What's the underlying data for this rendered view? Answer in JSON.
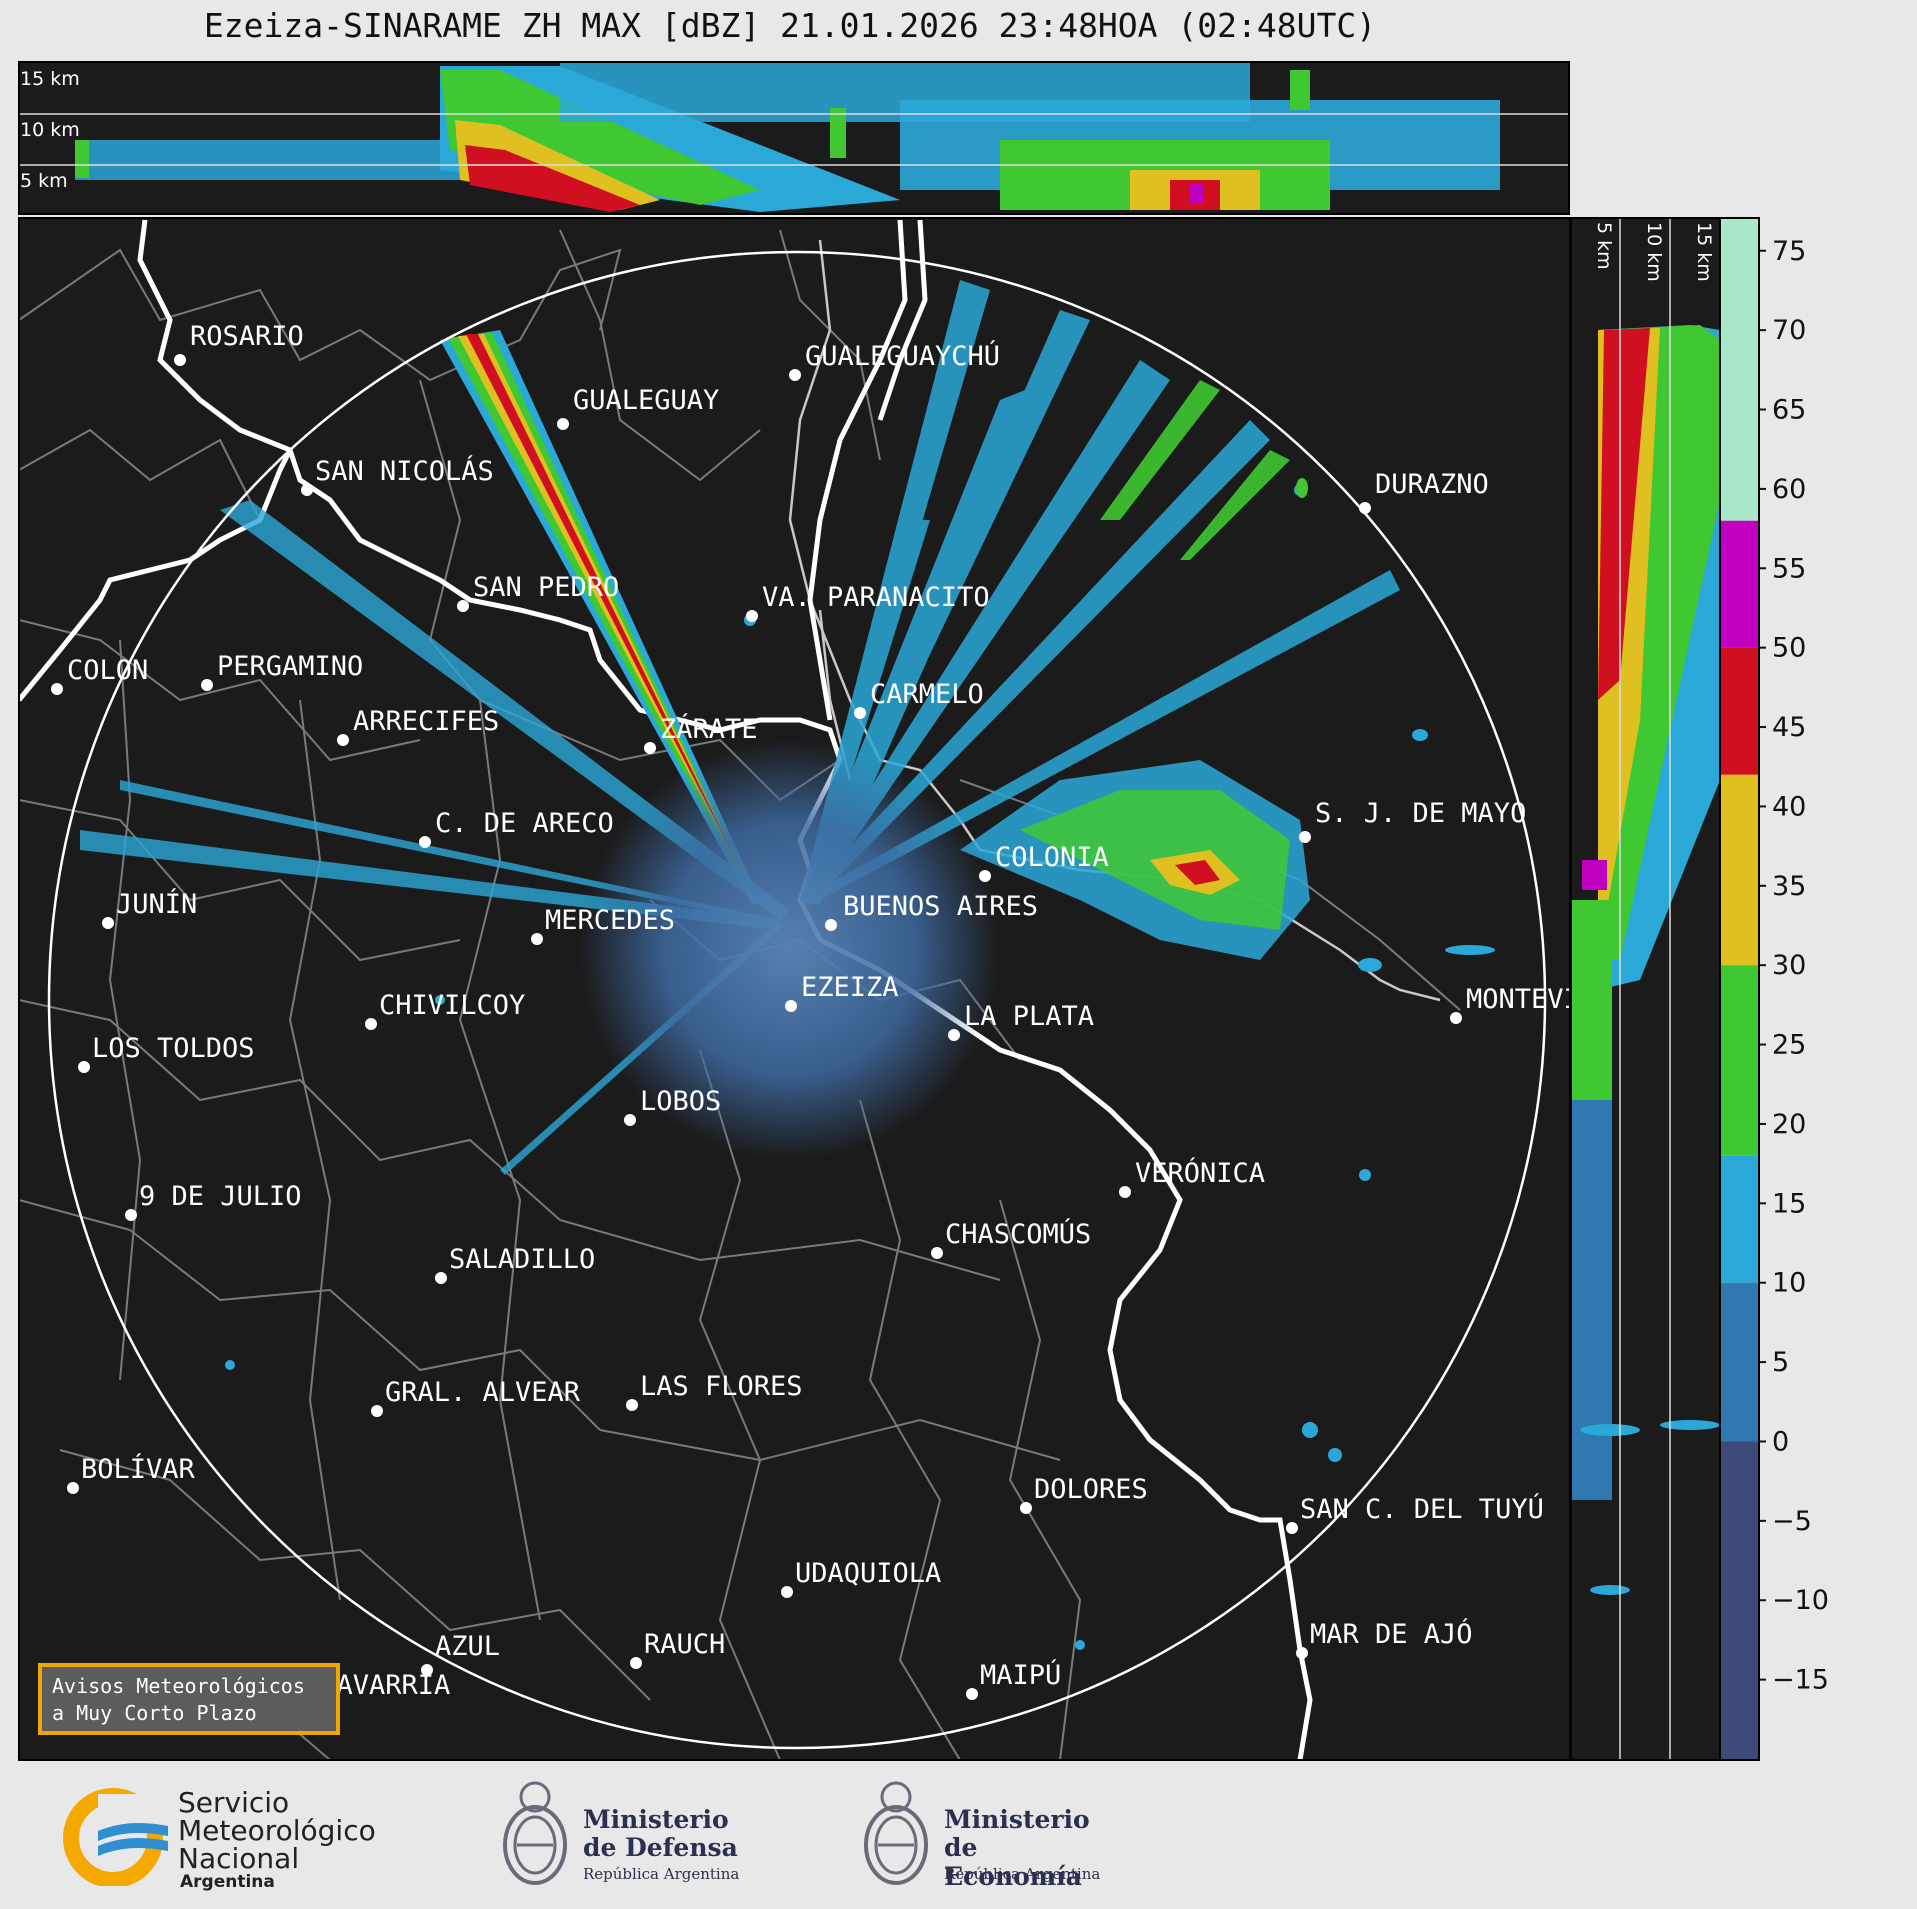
{
  "title": "Ezeiza-SINARAME ZH MAX [dBZ] 21.01.2026 23:48HOA (02:48UTC)",
  "top_panel": {
    "height_labels": [
      "15 km",
      "10 km",
      "5 km"
    ]
  },
  "side_panel": {
    "height_labels": [
      "5 km",
      "10 km",
      "15 km"
    ]
  },
  "colorbar": {
    "unit": "dBZ",
    "ticks": [
      "75",
      "70",
      "65",
      "60",
      "55",
      "50",
      "45",
      "40",
      "35",
      "30",
      "25",
      "20",
      "15",
      "10",
      "5",
      "0",
      "−5",
      "−10",
      "−15"
    ],
    "range": [
      -20,
      77
    ],
    "bands": [
      {
        "from": -20,
        "to": 0,
        "color": "#3d4a7a"
      },
      {
        "from": 0,
        "to": 10,
        "color": "#2f78b0"
      },
      {
        "from": 10,
        "to": 18,
        "color": "#2aa8d8"
      },
      {
        "from": 18,
        "to": 30,
        "color": "#3fc832"
      },
      {
        "from": 30,
        "to": 42,
        "color": "#e0c020"
      },
      {
        "from": 42,
        "to": 50,
        "color": "#d01020"
      },
      {
        "from": 50,
        "to": 58,
        "color": "#c000c0"
      },
      {
        "from": 58,
        "to": 77,
        "color": "#a8e8c8"
      }
    ]
  },
  "cities": [
    {
      "name": "ROSARIO"
    },
    {
      "name": "GUALEGUAYCHÚ"
    },
    {
      "name": "GUALEGUAY"
    },
    {
      "name": "SAN NICOLÁS"
    },
    {
      "name": "DURAZNO"
    },
    {
      "name": "SAN PEDRO"
    },
    {
      "name": "VA. PARANACITO"
    },
    {
      "name": "COLON"
    },
    {
      "name": "PERGAMINO"
    },
    {
      "name": "CARMELO"
    },
    {
      "name": "ARRECIFES"
    },
    {
      "name": "ZÁRATE"
    },
    {
      "name": "S. J. DE MAYO"
    },
    {
      "name": "C. DE ARECO"
    },
    {
      "name": "COLONIA"
    },
    {
      "name": "JUNÍN"
    },
    {
      "name": "BUENOS AIRES"
    },
    {
      "name": "MERCEDES"
    },
    {
      "name": "EZEIZA"
    },
    {
      "name": "MONTEVIDEO"
    },
    {
      "name": "CHIVILCOY"
    },
    {
      "name": "LA PLATA"
    },
    {
      "name": "LOS TOLDOS"
    },
    {
      "name": "LOBOS"
    },
    {
      "name": "VERÓNICA"
    },
    {
      "name": "9 DE JULIO"
    },
    {
      "name": "CHASCOMÚS"
    },
    {
      "name": "SALADILLO"
    },
    {
      "name": "GRAL. ALVEAR"
    },
    {
      "name": "LAS FLORES"
    },
    {
      "name": "BOLÍVAR"
    },
    {
      "name": "DOLORES"
    },
    {
      "name": "SAN C. DEL TUYÚ"
    },
    {
      "name": "UDAQUIOLA"
    },
    {
      "name": "AZUL"
    },
    {
      "name": "RAUCH"
    },
    {
      "name": "MAR DE AJÓ"
    },
    {
      "name": "OLAVARRÍA"
    },
    {
      "name": "MAIPÚ"
    }
  ],
  "avisos": {
    "line1": "Avisos Meteorológicos",
    "line2": "a Muy Corto Plazo"
  },
  "logos": {
    "smn": {
      "line1": "Servicio",
      "line2": "Meteorológico",
      "line3": "Nacional",
      "line4": "Argentina"
    },
    "defensa": {
      "line1": "Ministerio",
      "line2": "de Defensa",
      "line3": "República Argentina"
    },
    "economia": {
      "line1": "Ministerio",
      "line2": "de Economía",
      "line3": "República Argentina"
    }
  }
}
